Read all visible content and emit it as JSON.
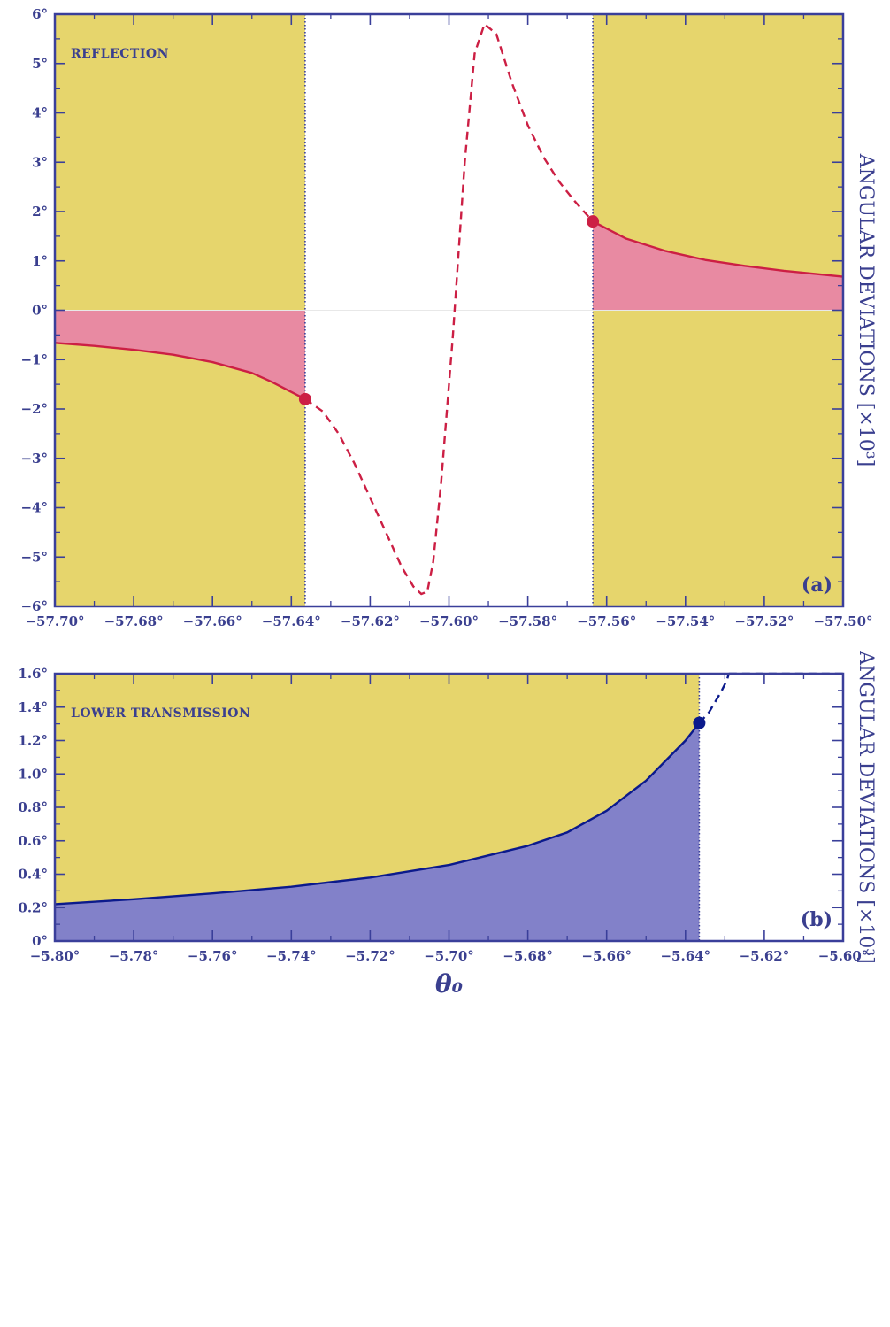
{
  "chart_data": [
    {
      "type": "line",
      "panel": "a",
      "panel_label": "(a)",
      "title": "REFLECTION",
      "ylabel": "ANGULAR DEVIATIONS  [×10³]",
      "xlabel": "",
      "xlim": [
        -57.7,
        -57.5
      ],
      "ylim": [
        -6,
        6
      ],
      "x_ticks": [
        "−57.70°",
        "−57.68°",
        "−57.66°",
        "−57.64°",
        "−57.62°",
        "−57.60°",
        "−57.58°",
        "−57.56°",
        "−57.54°",
        "−57.52°",
        "−57.50°"
      ],
      "y_ticks": [
        "6°",
        "5°",
        "4°",
        "3°",
        "2°",
        "1°",
        "0°",
        "−1°",
        "−2°",
        "−3°",
        "−4°",
        "−5°",
        "−6°"
      ],
      "y_tick_values": [
        6,
        5,
        4,
        3,
        2,
        1,
        0,
        -1,
        -2,
        -3,
        -4,
        -5,
        -6
      ],
      "shaded_regions_x": [
        [
          -57.7,
          -57.6365
        ],
        [
          -57.5635,
          -57.5
        ]
      ],
      "critical_angles": [
        -57.6365,
        -57.5635
      ],
      "series": [
        {
          "style": "solid",
          "x": [
            -57.7,
            -57.69,
            -57.68,
            -57.67,
            -57.66,
            -57.65,
            -57.645,
            -57.6365
          ],
          "y": [
            -0.66,
            -0.72,
            -0.8,
            -0.9,
            -1.05,
            -1.27,
            -1.45,
            -1.8
          ]
        },
        {
          "style": "dashed",
          "x": [
            -57.6365,
            -57.632,
            -57.628,
            -57.624,
            -57.62,
            -57.616,
            -57.612,
            -57.609,
            -57.607,
            -57.6055,
            -57.604,
            -57.602,
            -57.599,
            -57.596,
            -57.5935,
            -57.591,
            -57.588,
            -57.584,
            -57.58,
            -57.576,
            -57.572,
            -57.568,
            -57.5635
          ],
          "y": [
            -1.8,
            -2.05,
            -2.5,
            -3.1,
            -3.8,
            -4.5,
            -5.2,
            -5.6,
            -5.75,
            -5.7,
            -5.1,
            -3.5,
            -0.5,
            3.0,
            5.2,
            5.8,
            5.6,
            4.6,
            3.75,
            3.1,
            2.6,
            2.2,
            1.8
          ]
        },
        {
          "style": "solid",
          "x": [
            -57.5635,
            -57.555,
            -57.545,
            -57.535,
            -57.525,
            -57.515,
            -57.5
          ],
          "y": [
            1.8,
            1.45,
            1.2,
            1.02,
            0.9,
            0.8,
            0.68
          ]
        }
      ],
      "markers": [
        {
          "x": -57.6365,
          "y": -1.8
        },
        {
          "x": -57.5635,
          "y": 1.8
        }
      ],
      "colors": {
        "region": "#e6d56c",
        "fill": "#e88aa2",
        "line": "#cc1f44",
        "frame": "#3a3f9a",
        "critical_line": "#3a3f9a"
      }
    },
    {
      "type": "line",
      "panel": "b",
      "panel_label": "(b)",
      "title": "LOWER TRANSMISSION",
      "ylabel": "ANGULAR DEVIATIONS  [×10³]",
      "xlabel": "θ₀",
      "xlim": [
        -5.8,
        -5.6
      ],
      "ylim": [
        0,
        1.6
      ],
      "x_ticks": [
        "−5.80°",
        "−5.78°",
        "−5.76°",
        "−5.74°",
        "−5.72°",
        "−5.70°",
        "−5.68°",
        "−5.66°",
        "−5.64°",
        "−5.62°",
        "−5.60°"
      ],
      "y_ticks": [
        "1.6°",
        "1.4°",
        "1.2°",
        "1.0°",
        "0.8°",
        "0.6°",
        "0.4°",
        "0.2°",
        "0°"
      ],
      "y_tick_values": [
        1.6,
        1.4,
        1.2,
        1.0,
        0.8,
        0.6,
        0.4,
        0.2,
        0
      ],
      "shaded_regions_x": [
        [
          -5.8,
          -5.6365
        ]
      ],
      "critical_angles": [
        -5.6365
      ],
      "series": [
        {
          "style": "solid",
          "x": [
            -5.8,
            -5.78,
            -5.76,
            -5.74,
            -5.72,
            -5.7,
            -5.68,
            -5.67,
            -5.66,
            -5.65,
            -5.645,
            -5.64,
            -5.6365
          ],
          "y": [
            0.22,
            0.25,
            0.285,
            0.325,
            0.38,
            0.455,
            0.57,
            0.65,
            0.78,
            0.96,
            1.08,
            1.2,
            1.305
          ]
        },
        {
          "style": "dashed",
          "x": [
            -5.6365,
            -5.634,
            -5.6325,
            -5.631,
            -5.6295,
            -5.629
          ],
          "y": [
            1.305,
            1.37,
            1.43,
            1.49,
            1.56,
            1.6
          ]
        },
        {
          "style": "dashed",
          "x": [
            -5.629,
            -5.6
          ],
          "y": [
            1.6,
            1.6
          ]
        }
      ],
      "markers": [
        {
          "x": -5.6365,
          "y": 1.305
        }
      ],
      "colors": {
        "region": "#e6d56c",
        "fill": "#8281c9",
        "line": "#0b1a8c",
        "frame": "#3a3f9a",
        "critical_line": "#3a3f9a"
      }
    }
  ]
}
